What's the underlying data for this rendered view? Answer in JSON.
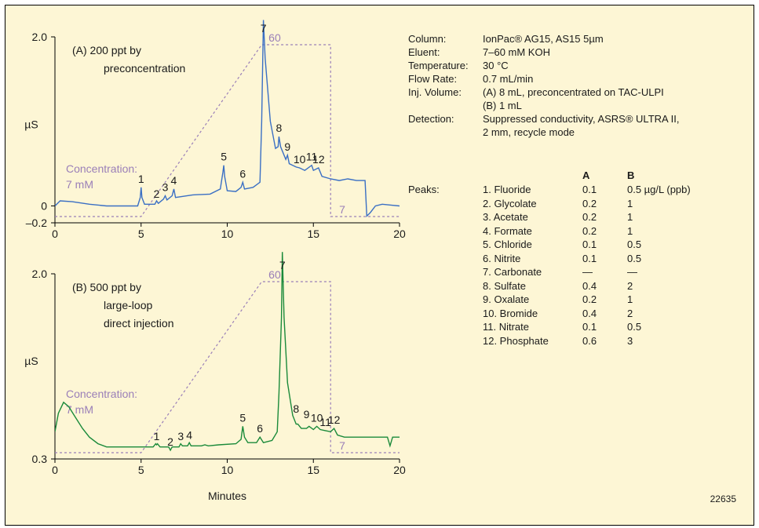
{
  "chart_data": [
    {
      "type": "line",
      "panel": "A",
      "xlim": [
        0,
        20
      ],
      "ylim": [
        -0.2,
        2.0
      ],
      "x_ticks": [
        "0",
        "5",
        "10",
        "15",
        "20"
      ],
      "y_ticks": [
        "2.0",
        "0",
        "–0.2"
      ],
      "ylabel": "µS",
      "xlabel": "",
      "title": "(A)  200 ppt by preconcentration",
      "title_line1": "(A)  200 ppt by",
      "title_line2": "preconcentration",
      "concentration_label_1": "Concentration:",
      "concentration_label_2": "7 mM",
      "gradient_top_label": "60",
      "gradient_bottom_label": "7",
      "gradient_program": {
        "x": [
          0,
          5,
          12,
          16,
          16,
          20
        ],
        "y": [
          7,
          7,
          60,
          60,
          7,
          7
        ]
      },
      "peaks": [
        {
          "label": "1",
          "x": 5.0,
          "y": 0.22
        },
        {
          "label": "2",
          "x": 5.9,
          "y": 0.04
        },
        {
          "label": "3",
          "x": 6.4,
          "y": 0.12
        },
        {
          "label": "4",
          "x": 6.9,
          "y": 0.2
        },
        {
          "label": "5",
          "x": 9.8,
          "y": 0.48
        },
        {
          "label": "6",
          "x": 10.9,
          "y": 0.28
        },
        {
          "label": "7",
          "x": 12.1,
          "y": 2.2
        },
        {
          "label": "8",
          "x": 13.0,
          "y": 0.82
        },
        {
          "label": "9",
          "x": 13.5,
          "y": 0.6
        },
        {
          "label": "10",
          "x": 14.2,
          "y": 0.45
        },
        {
          "label": "11",
          "x": 14.9,
          "y": 0.48
        },
        {
          "label": "12",
          "x": 15.3,
          "y": 0.45
        }
      ],
      "trace": {
        "x": [
          0,
          0.3,
          1,
          2,
          3,
          4,
          4.8,
          4.95,
          5.0,
          5.05,
          5.2,
          5.8,
          5.9,
          6.0,
          6.3,
          6.4,
          6.5,
          6.8,
          6.9,
          7.0,
          8,
          9,
          9.6,
          9.75,
          9.8,
          9.85,
          10.0,
          10.5,
          10.8,
          10.9,
          11.0,
          11.5,
          11.9,
          12.0,
          12.1,
          12.2,
          12.3,
          12.5,
          12.8,
          12.95,
          13.0,
          13.1,
          13.4,
          13.5,
          13.6,
          14.0,
          14.2,
          14.5,
          14.9,
          15.0,
          15.3,
          15.5,
          16.0,
          16.5,
          17.0,
          17.5,
          18.0,
          18.1,
          18.3,
          18.6,
          19.0,
          19.5,
          20.0
        ],
        "y": [
          0,
          0.06,
          0.05,
          0.02,
          0.0,
          0.0,
          0.0,
          0.1,
          0.22,
          0.1,
          0.02,
          0.02,
          0.06,
          0.03,
          0.08,
          0.12,
          0.07,
          0.12,
          0.2,
          0.1,
          0.13,
          0.14,
          0.2,
          0.4,
          0.48,
          0.35,
          0.18,
          0.17,
          0.22,
          0.28,
          0.2,
          0.22,
          0.28,
          1.0,
          2.2,
          1.75,
          1.5,
          1.0,
          0.68,
          0.7,
          0.82,
          0.7,
          0.55,
          0.6,
          0.5,
          0.46,
          0.45,
          0.42,
          0.48,
          0.42,
          0.45,
          0.35,
          0.32,
          0.3,
          0.32,
          0.3,
          0.3,
          -0.12,
          -0.08,
          0.0,
          0.02,
          0.01,
          0.0
        ]
      }
    },
    {
      "type": "line",
      "panel": "B",
      "xlim": [
        0,
        20
      ],
      "ylim": [
        0.3,
        2.0
      ],
      "x_ticks": [
        "0",
        "5",
        "10",
        "15",
        "20"
      ],
      "y_ticks": [
        "2.0",
        "0.3"
      ],
      "ylabel": "µS",
      "xlabel": "Minutes",
      "title": "(B)  500 ppt by large-loop direct injection",
      "title_line1": "(B)  500 ppt by",
      "title_line2": "large-loop",
      "title_line3": "direct injection",
      "concentration_label_1": "Concentration:",
      "concentration_label_2": "7 mM",
      "gradient_top_label": "60",
      "gradient_bottom_label": "7",
      "gradient_program": {
        "x": [
          0,
          5,
          12,
          16,
          16,
          20
        ],
        "y": [
          7,
          7,
          60,
          60,
          7,
          7
        ]
      },
      "peaks": [
        {
          "label": "1",
          "x": 5.9,
          "y": 0.43
        },
        {
          "label": "2",
          "x": 6.7,
          "y": 0.38
        },
        {
          "label": "3",
          "x": 7.3,
          "y": 0.43
        },
        {
          "label": "4",
          "x": 7.8,
          "y": 0.44
        },
        {
          "label": "5",
          "x": 10.9,
          "y": 0.6
        },
        {
          "label": "6",
          "x": 11.9,
          "y": 0.5
        },
        {
          "label": "7",
          "x": 13.2,
          "y": 2.2
        },
        {
          "label": "8",
          "x": 14.0,
          "y": 0.68
        },
        {
          "label": "9",
          "x": 14.6,
          "y": 0.63
        },
        {
          "label": "10",
          "x": 15.2,
          "y": 0.6
        },
        {
          "label": "11",
          "x": 15.7,
          "y": 0.56
        },
        {
          "label": "12",
          "x": 16.2,
          "y": 0.58
        }
      ],
      "trace": {
        "x": [
          0,
          0.2,
          0.5,
          0.8,
          1.2,
          1.6,
          2.0,
          2.5,
          3.0,
          4.0,
          5.0,
          5.7,
          5.85,
          5.9,
          5.95,
          6.1,
          6.6,
          6.7,
          6.8,
          7.2,
          7.3,
          7.4,
          7.7,
          7.8,
          7.9,
          8.5,
          8.7,
          8.9,
          9.5,
          10.5,
          10.8,
          10.9,
          11.0,
          11.2,
          11.7,
          11.9,
          12.1,
          12.6,
          12.9,
          13.0,
          13.15,
          13.2,
          13.3,
          13.5,
          13.8,
          14.0,
          14.1,
          14.3,
          14.6,
          14.75,
          15.0,
          15.2,
          15.4,
          15.7,
          16.0,
          16.2,
          16.4,
          16.8,
          17.5,
          18.5,
          19.3,
          19.45,
          19.6,
          20.0
        ],
        "y": [
          0.55,
          0.72,
          0.82,
          0.78,
          0.68,
          0.58,
          0.5,
          0.44,
          0.41,
          0.41,
          0.41,
          0.41,
          0.44,
          0.43,
          0.44,
          0.41,
          0.41,
          0.38,
          0.41,
          0.41,
          0.44,
          0.42,
          0.42,
          0.45,
          0.42,
          0.42,
          0.43,
          0.42,
          0.43,
          0.44,
          0.48,
          0.6,
          0.5,
          0.45,
          0.45,
          0.5,
          0.45,
          0.47,
          0.55,
          0.9,
          1.6,
          2.2,
          1.6,
          1.0,
          0.7,
          0.62,
          0.62,
          0.58,
          0.58,
          0.6,
          0.57,
          0.6,
          0.57,
          0.56,
          0.55,
          0.58,
          0.52,
          0.5,
          0.5,
          0.5,
          0.5,
          0.42,
          0.5,
          0.5
        ]
      }
    }
  ],
  "conditions": [
    {
      "key": "Column:",
      "value": "IonPac® AG15, AS15 5µm"
    },
    {
      "key": "Eluent:",
      "value": "7–60 mM KOH"
    },
    {
      "key": "Temperature:",
      "value": "30 °C"
    },
    {
      "key": "Flow Rate:",
      "value": "0.7 mL/min"
    },
    {
      "key": "Inj. Volume:",
      "value": "(A) 8 mL, preconcentrated on TAC-ULPI"
    },
    {
      "key": "",
      "value": "(B) 1 mL"
    },
    {
      "key": "Detection:",
      "value": "Suppressed conductivity, ASRS® ULTRA II,"
    },
    {
      "key": "",
      "value": "2 mm, recycle mode"
    }
  ],
  "peaks_table": {
    "title": "Peaks:",
    "col_a": "A",
    "col_b": "B",
    "rows": [
      {
        "name": "1. Fluoride",
        "a": "0.1",
        "b": "0.5  µg/L (ppb)"
      },
      {
        "name": "2. Glycolate",
        "a": "0.2",
        "b": "1"
      },
      {
        "name": "3. Acetate",
        "a": "0.2",
        "b": "1"
      },
      {
        "name": "4. Formate",
        "a": "0.2",
        "b": "1"
      },
      {
        "name": "5. Chloride",
        "a": "0.1",
        "b": "0.5"
      },
      {
        "name": "6.   Nitrite",
        "a": "0.1",
        "b": "0.5"
      },
      {
        "name": "7. Carbonate",
        "a": "—",
        "b": "—"
      },
      {
        "name": "8. Sulfate",
        "a": "0.4",
        "b": "2"
      },
      {
        "name": "9. Oxalate",
        "a": "0.2",
        "b": "1"
      },
      {
        "name": "10. Bromide",
        "a": "0.4",
        "b": "2"
      },
      {
        "name": "11. Nitrate",
        "a": "0.1",
        "b": "0.5"
      },
      {
        "name": "12. Phosphate",
        "a": "0.6",
        "b": "3"
      }
    ]
  },
  "figure_id": "22635",
  "colors": {
    "background": "#fdf6d5",
    "trace_a": "#3a6fc4",
    "trace_b": "#1a8a3a",
    "gradient": "#9a7fb8",
    "text": "#1a1a1a"
  }
}
